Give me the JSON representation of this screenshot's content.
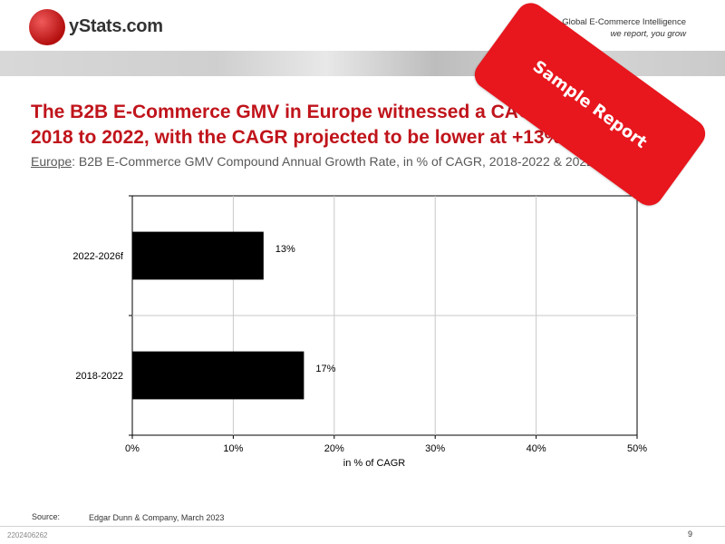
{
  "header": {
    "logo_text": "yStats.com",
    "tagline_line1": "Global E-Commerce Intelligence",
    "tagline_line2": "we report, you grow"
  },
  "title": "The B2B E-Commerce GMV in Europe witnessed a CAGR of +17% from 2018 to 2022, with the CAGR projected to be lower at +13%",
  "subtitle": {
    "region": "Europe",
    "text": ": B2B E-Commerce GMV Compound Annual Growth Rate, in % of CAGR, 2018-2022 & 2022-2026f"
  },
  "stamp": {
    "text": "Sample Report"
  },
  "chart_data": {
    "type": "bar",
    "orientation": "horizontal",
    "categories": [
      "2018-2022",
      "2022-2026f"
    ],
    "values": [
      17,
      13
    ],
    "data_labels": [
      "17%",
      "13%"
    ],
    "xlabel": "in % of CAGR",
    "xlim": [
      0,
      50
    ],
    "x_ticks": [
      "0%",
      "10%",
      "20%",
      "30%",
      "40%",
      "50%"
    ],
    "bar_color": "#000000",
    "grid": true
  },
  "source": {
    "label": "Source:",
    "text": "Edgar Dunn & Company, March 2023"
  },
  "footer": {
    "id": "2202406262",
    "page": "9"
  }
}
